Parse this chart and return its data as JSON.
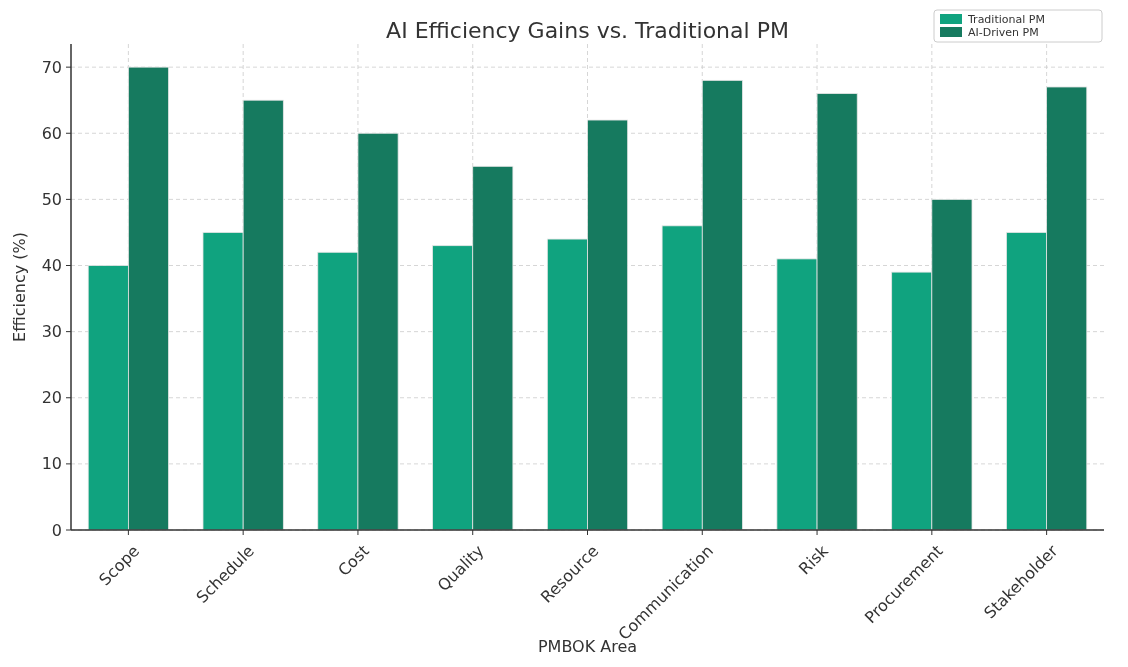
{
  "chart_data": {
    "type": "bar",
    "title": "AI Efficiency Gains vs. Traditional PM",
    "xlabel": "PMBOK Area",
    "ylabel": "Efficiency (%)",
    "categories": [
      "Scope",
      "Schedule",
      "Cost",
      "Quality",
      "Resource",
      "Communication",
      "Risk",
      "Procurement",
      "Stakeholder"
    ],
    "series": [
      {
        "name": "Traditional PM",
        "color": "#10a37f",
        "values": [
          40,
          45,
          42,
          43,
          44,
          46,
          41,
          39,
          45
        ]
      },
      {
        "name": "AI-Driven PM",
        "color": "#167a5f",
        "values": [
          70,
          65,
          60,
          55,
          62,
          68,
          66,
          50,
          67
        ]
      }
    ],
    "ylim": [
      0,
      73.5
    ],
    "yticks": [
      0,
      10,
      20,
      30,
      40,
      50,
      60,
      70
    ],
    "grid": true,
    "legend": "top right"
  }
}
